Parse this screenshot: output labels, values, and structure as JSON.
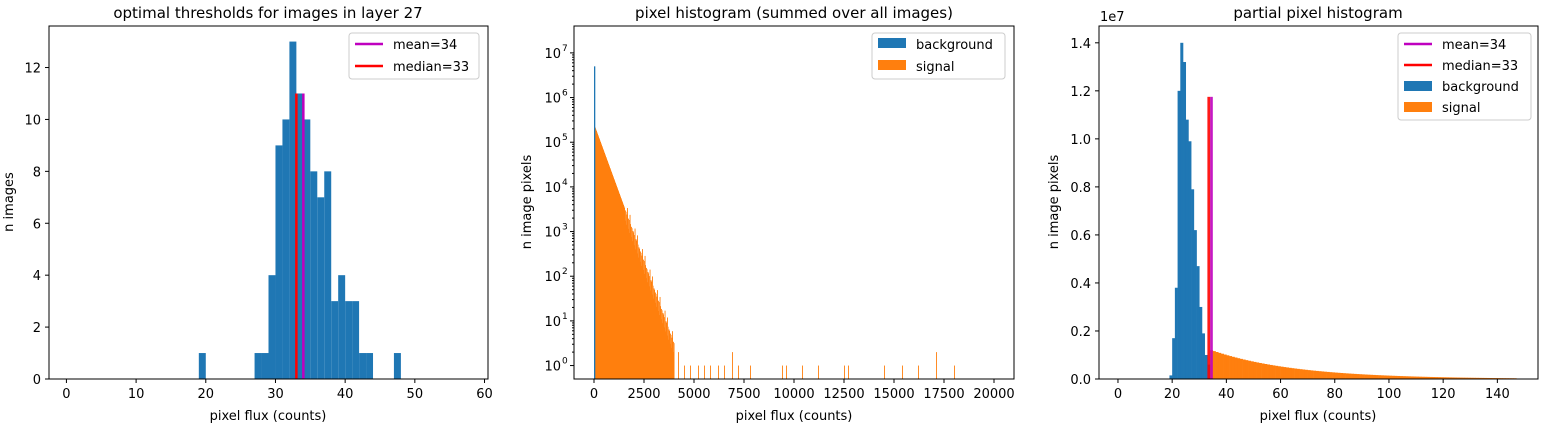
{
  "colors": {
    "background": "#1f77b4",
    "signal": "#ff7f0e",
    "mean": "#bf00bf",
    "median": "#ff0000"
  },
  "chart_data": [
    {
      "type": "bar",
      "title": "optimal thresholds for images in layer 27",
      "xlabel": "pixel flux (counts)",
      "ylabel": "n images",
      "xlim": [
        -2.5,
        60.5
      ],
      "ylim": [
        0,
        13.6
      ],
      "xticks": [
        0,
        10,
        20,
        30,
        40,
        50,
        60
      ],
      "yticks": [
        0,
        2,
        4,
        6,
        8,
        10,
        12
      ],
      "bin_width": 1,
      "bins": [
        {
          "x": 19,
          "y": 1
        },
        {
          "x": 27,
          "y": 1
        },
        {
          "x": 28,
          "y": 1
        },
        {
          "x": 29,
          "y": 4
        },
        {
          "x": 30,
          "y": 9
        },
        {
          "x": 31,
          "y": 10
        },
        {
          "x": 32,
          "y": 13
        },
        {
          "x": 33,
          "y": 11
        },
        {
          "x": 34,
          "y": 10
        },
        {
          "x": 35,
          "y": 8
        },
        {
          "x": 36,
          "y": 7
        },
        {
          "x": 37,
          "y": 8
        },
        {
          "x": 38,
          "y": 3
        },
        {
          "x": 39,
          "y": 4
        },
        {
          "x": 40,
          "y": 3
        },
        {
          "x": 41,
          "y": 3
        },
        {
          "x": 42,
          "y": 1
        },
        {
          "x": 43,
          "y": 1
        },
        {
          "x": 47,
          "y": 1
        }
      ],
      "vlines": [
        {
          "name": "mean=34",
          "x": 34,
          "y": 11,
          "color": "#bf00bf"
        },
        {
          "name": "median=33",
          "x": 33,
          "y": 11,
          "color": "#ff0000"
        }
      ],
      "legend": [
        "mean=34",
        "median=33"
      ],
      "legend_position": "top-right"
    },
    {
      "type": "bar",
      "title": "pixel histogram (summed over all images)",
      "xlabel": "pixel flux (counts)",
      "ylabel": "n image pixels",
      "yscale": "log",
      "xlim": [
        -1000,
        21000
      ],
      "ylim": [
        0.5,
        40000000
      ],
      "xticks": [
        0,
        2500,
        5000,
        7500,
        10000,
        12500,
        15000,
        17500,
        20000
      ],
      "ytick_exponents": [
        0,
        1,
        2,
        3,
        4,
        5,
        6,
        7
      ],
      "background": {
        "x": 0,
        "y": 5000000
      },
      "signal_decay": {
        "x_start": 30,
        "y_start": 220000,
        "x_dense_end": 4000,
        "y_dense_end": 3
      },
      "sparse_signal": [
        {
          "x": 4200,
          "y": 2
        },
        {
          "x": 4500,
          "y": 1
        },
        {
          "x": 4800,
          "y": 1
        },
        {
          "x": 5200,
          "y": 1
        },
        {
          "x": 5500,
          "y": 1
        },
        {
          "x": 5800,
          "y": 1
        },
        {
          "x": 6200,
          "y": 1
        },
        {
          "x": 6500,
          "y": 1
        },
        {
          "x": 6900,
          "y": 2
        },
        {
          "x": 7200,
          "y": 1
        },
        {
          "x": 7800,
          "y": 1
        },
        {
          "x": 9400,
          "y": 1
        },
        {
          "x": 9600,
          "y": 1
        },
        {
          "x": 10400,
          "y": 1
        },
        {
          "x": 11200,
          "y": 1
        },
        {
          "x": 12500,
          "y": 1
        },
        {
          "x": 12700,
          "y": 1
        },
        {
          "x": 14500,
          "y": 1
        },
        {
          "x": 15400,
          "y": 1
        },
        {
          "x": 16200,
          "y": 1
        },
        {
          "x": 17100,
          "y": 2
        },
        {
          "x": 18000,
          "y": 1
        }
      ],
      "legend": [
        "background",
        "signal"
      ],
      "legend_position": "top-right"
    },
    {
      "type": "bar",
      "title": "partial pixel histogram",
      "xlabel": "pixel flux (counts)",
      "ylabel": "n image pixels",
      "offset_text": "1e7",
      "xlim": [
        -7,
        155
      ],
      "ylim": [
        0,
        14700000
      ],
      "xticks": [
        0,
        20,
        40,
        60,
        80,
        100,
        120,
        140
      ],
      "yticks": [
        "0.0",
        "0.2",
        "0.4",
        "0.6",
        "0.8",
        "1.0",
        "1.2",
        "1.4"
      ],
      "background_bins": [
        {
          "x": 19,
          "y": 150000
        },
        {
          "x": 20,
          "y": 1700000
        },
        {
          "x": 21,
          "y": 3800000
        },
        {
          "x": 22,
          "y": 12000000
        },
        {
          "x": 23,
          "y": 14000000
        },
        {
          "x": 24,
          "y": 13200000
        },
        {
          "x": 25,
          "y": 10800000
        },
        {
          "x": 26,
          "y": 9900000
        },
        {
          "x": 27,
          "y": 7900000
        },
        {
          "x": 28,
          "y": 6200000
        },
        {
          "x": 29,
          "y": 4700000
        },
        {
          "x": 30,
          "y": 3000000
        },
        {
          "x": 31,
          "y": 1900000
        },
        {
          "x": 32,
          "y": 1000000
        },
        {
          "x": 33,
          "y": 600000
        }
      ],
      "signal_tail": {
        "x_start": 34,
        "y_start": 1200000,
        "x_end": 147,
        "y_end": 30000
      },
      "vlines": [
        {
          "name": "mean=34",
          "x": 34,
          "y": 11750000,
          "color": "#bf00bf"
        },
        {
          "name": "median=33",
          "x": 33,
          "y": 11750000,
          "color": "#ff0000"
        }
      ],
      "legend": [
        "mean=34",
        "median=33",
        "background",
        "signal"
      ],
      "legend_position": "top-right"
    }
  ]
}
